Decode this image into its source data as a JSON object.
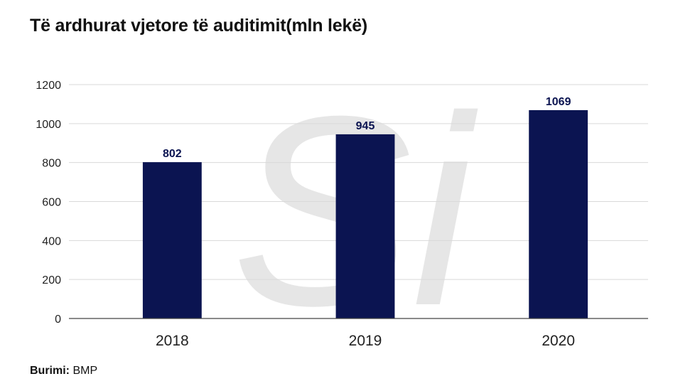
{
  "title": "Të ardhurat vjetore të auditimit(mln lekë)",
  "source": {
    "label": "Burimi:",
    "value": "BMP"
  },
  "watermark": {
    "text": "Si",
    "color": "#e6e6e6"
  },
  "chart_data": {
    "type": "bar",
    "title": "Të ardhurat vjetore të auditimit(mln lekë)",
    "categories": [
      "2018",
      "2019",
      "2020"
    ],
    "values": [
      802,
      945,
      1069
    ],
    "data_labels": [
      "802",
      "945",
      "1069"
    ],
    "yticks": [
      0,
      200,
      400,
      600,
      800,
      1000,
      1200
    ],
    "ylim": [
      0,
      1200
    ],
    "xlabel": "",
    "ylabel": "",
    "grid": true,
    "legend": "none",
    "bar_color": "#0b1451",
    "label_color": "#0b1451",
    "grid_color": "#d9d9d9",
    "axis_color": "#444444"
  }
}
